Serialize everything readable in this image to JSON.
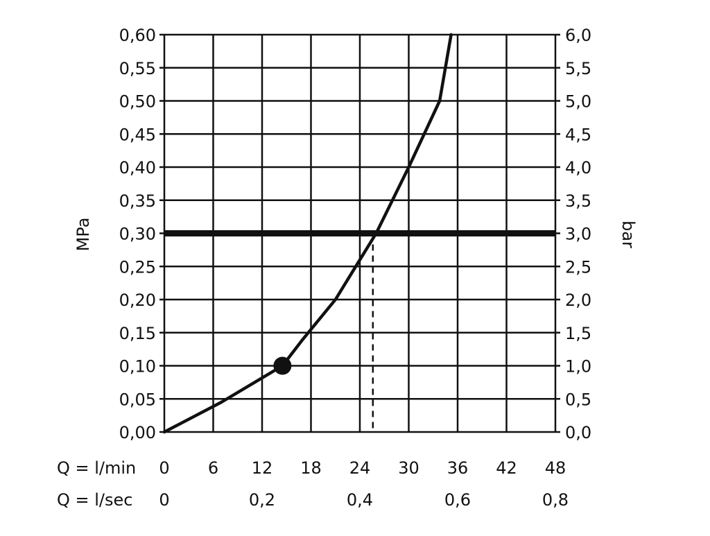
{
  "chart_data": {
    "type": "line",
    "title": "",
    "ylabel_left": "MPa",
    "ylabel_right": "bar",
    "x_row_labels": [
      "Q = l/min",
      "Q = l/sec"
    ],
    "x_ticks_lmin": [
      "0",
      "6",
      "12",
      "18",
      "24",
      "30",
      "36",
      "42",
      "48"
    ],
    "x_ticks_lsec": [
      "0",
      "0,2",
      "0,4",
      "0,6",
      "0,8"
    ],
    "y_ticks_mpa": [
      "0,00",
      "0,05",
      "0,10",
      "0,15",
      "0,20",
      "0,25",
      "0,30",
      "0,35",
      "0,40",
      "0,45",
      "0,50",
      "0,55",
      "0,60"
    ],
    "y_ticks_bar": [
      "0,0",
      "0,5",
      "1,0",
      "1,5",
      "2,0",
      "2,5",
      "3,0",
      "3,5",
      "4,0",
      "4,5",
      "5,0",
      "5,5",
      "6,0"
    ],
    "xlim": [
      0,
      48
    ],
    "ylim": [
      0,
      0.6
    ],
    "x_lsec_per_lmin": 0.0166667,
    "x_grid_step": 6,
    "y_grid_step": 0.05,
    "grid": true,
    "series": [
      {
        "x": [
          0,
          7,
          14.5,
          17,
          21,
          24,
          26,
          30,
          33.8,
          35.2
        ],
        "y": [
          0,
          0.045,
          0.1,
          0.14,
          0.2,
          0.26,
          0.3,
          0.4,
          0.5,
          0.6
        ]
      }
    ],
    "marker_point": {
      "x": 14.5,
      "y": 0.1
    },
    "reference_line_y": 0.3,
    "dashed_drop": {
      "x": 25.6,
      "y_from": 0.3,
      "y_to": 0
    }
  }
}
